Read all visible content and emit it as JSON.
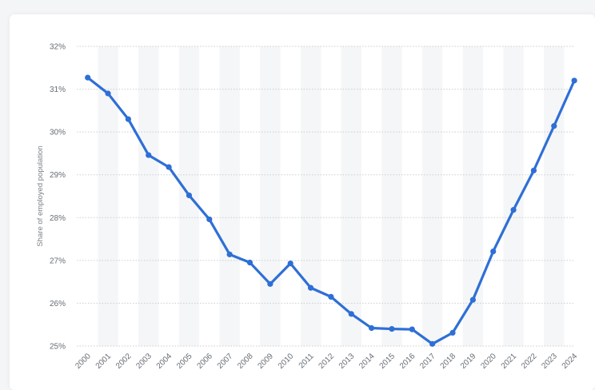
{
  "chart_data": {
    "type": "line",
    "title": "",
    "xlabel": "",
    "ylabel": "Share of employed population",
    "x": [
      "2000",
      "2001",
      "2002",
      "2003",
      "2004",
      "2005",
      "2006",
      "2007",
      "2008",
      "2009",
      "2010",
      "2011",
      "2012",
      "2013",
      "2014",
      "2015",
      "2016",
      "2017",
      "2018",
      "2019",
      "2020",
      "2021",
      "2022",
      "2023",
      "2024"
    ],
    "series": [
      {
        "values": [
          31.27,
          30.9,
          30.3,
          29.46,
          29.18,
          28.52,
          27.96,
          27.14,
          26.95,
          26.45,
          26.93,
          26.36,
          26.15,
          25.75,
          25.42,
          25.4,
          25.39,
          25.05,
          25.31,
          26.08,
          27.21,
          28.18,
          29.1,
          30.14,
          31.2
        ]
      }
    ],
    "ylim": [
      25,
      32
    ],
    "yticks": [
      25,
      26,
      27,
      28,
      29,
      30,
      31,
      32
    ],
    "ytick_labels": [
      "25%",
      "26%",
      "27%",
      "28%",
      "29%",
      "30%",
      "31%",
      "32%"
    ],
    "grid": "horizontal-dotted",
    "colors": {
      "line": "#2e6fd6",
      "band": "#f5f6f7",
      "grid": "#c9cdd1"
    }
  }
}
